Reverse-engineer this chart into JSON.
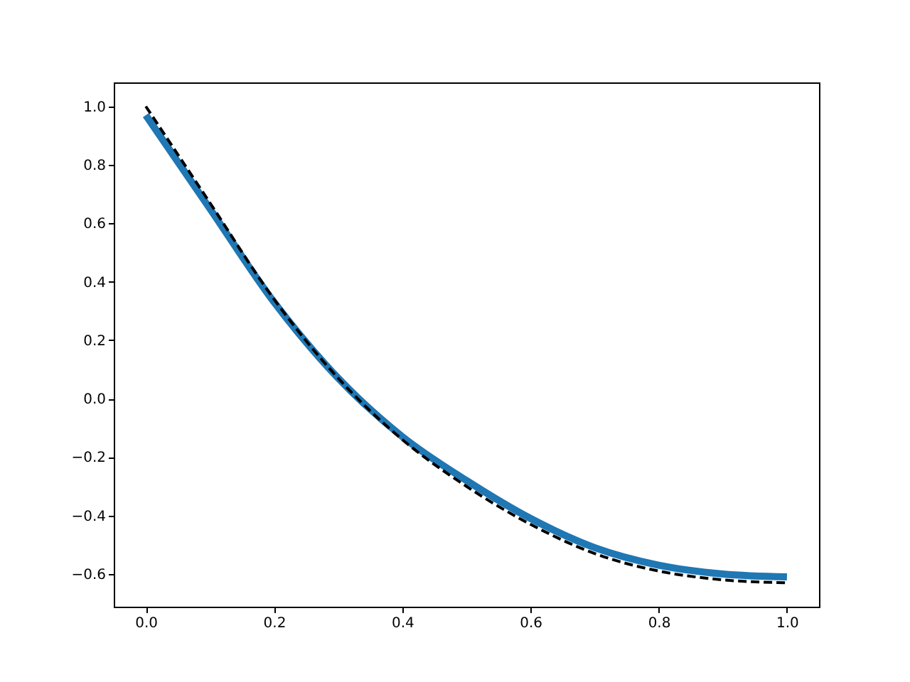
{
  "chart_data": {
    "type": "line",
    "xlim": [
      -0.05,
      1.05
    ],
    "ylim": [
      -0.712,
      1.082
    ],
    "xticks": [
      {
        "value": 0,
        "label": "0.0"
      },
      {
        "value": 0.2,
        "label": "0.2"
      },
      {
        "value": 0.4,
        "label": "0.4"
      },
      {
        "value": 0.6,
        "label": "0.6"
      },
      {
        "value": 0.8,
        "label": "0.8"
      },
      {
        "value": 1,
        "label": "1.0"
      }
    ],
    "yticks": [
      {
        "value": -0.6,
        "label": "−0.6"
      },
      {
        "value": -0.4,
        "label": "−0.4"
      },
      {
        "value": -0.2,
        "label": "−0.2"
      },
      {
        "value": 0,
        "label": "0.0"
      },
      {
        "value": 0.2,
        "label": "0.2"
      },
      {
        "value": 0.4,
        "label": "0.4"
      },
      {
        "value": 0.6,
        "label": "0.6"
      },
      {
        "value": 0.8,
        "label": "0.8"
      },
      {
        "value": 1,
        "label": "1.0"
      }
    ],
    "x": [
      0,
      0.1,
      0.2,
      0.3,
      0.4,
      0.5,
      0.6,
      0.7,
      0.8,
      0.9,
      1.0
    ],
    "grid": false,
    "series": [
      {
        "color": "#1f77b4",
        "line_style": "solid",
        "values": [
          0.97,
          0.65,
          0.33,
          0.07,
          -0.13,
          -0.28,
          -0.41,
          -0.51,
          -0.57,
          -0.6,
          -0.61
        ]
      },
      {
        "color": "#000000",
        "line_style": "dashed",
        "values": [
          1.0,
          0.67,
          0.34,
          0.07,
          -0.14,
          -0.3,
          -0.43,
          -0.53,
          -0.59,
          -0.62,
          -0.63
        ]
      }
    ]
  }
}
